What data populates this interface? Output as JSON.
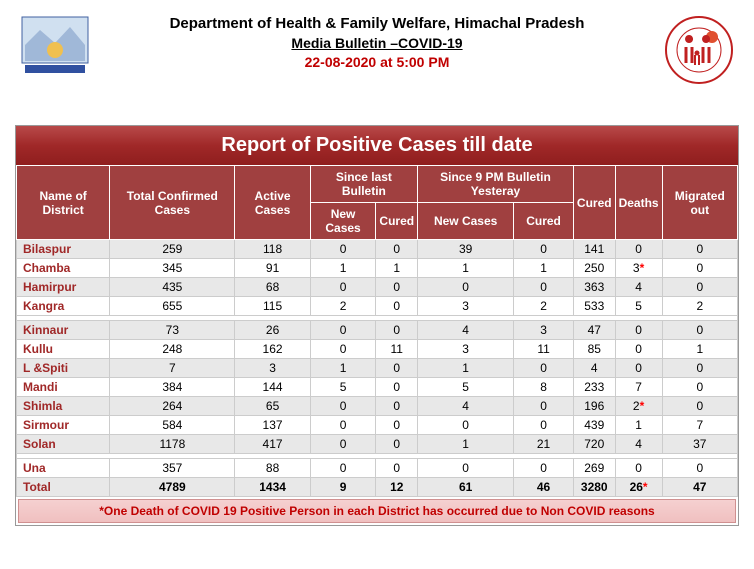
{
  "header": {
    "dept": "Department of Health & Family Welfare, Himachal Pradesh",
    "media": "Media Bulletin –COVID-19",
    "date": "22-08-2020 at 5:00 PM"
  },
  "reportTitle": "Report of Positive Cases till date",
  "columns": {
    "name": "Name of District",
    "total": "Total Confirmed Cases",
    "active": "Active Cases",
    "sinceLast": "Since last Bulletin",
    "since9pm": "Since 9 PM Bulletin Yesteray",
    "newCases": "New Cases",
    "cured": "Cured",
    "curedCol": "Cured",
    "deaths": "Deaths",
    "migrated": "Migrated out"
  },
  "rows": [
    {
      "n": "Bilaspur",
      "t": "259",
      "a": "118",
      "ln": "0",
      "lc": "0",
      "yn": "39",
      "yc": "0",
      "c": "141",
      "d": "0",
      "m": "0",
      "star": false,
      "cls": "odd"
    },
    {
      "n": "Chamba",
      "t": "345",
      "a": "91",
      "ln": "1",
      "lc": "1",
      "yn": "1",
      "yc": "1",
      "c": "250",
      "d": "3",
      "m": "0",
      "star": true,
      "cls": "even"
    },
    {
      "n": "Hamirpur",
      "t": "435",
      "a": "68",
      "ln": "0",
      "lc": "0",
      "yn": "0",
      "yc": "0",
      "c": "363",
      "d": "4",
      "m": "0",
      "star": false,
      "cls": "odd"
    },
    {
      "n": "Kangra",
      "t": "655",
      "a": "115",
      "ln": "2",
      "lc": "0",
      "yn": "3",
      "yc": "2",
      "c": "533",
      "d": "5",
      "m": "2",
      "star": false,
      "cls": "even"
    }
  ],
  "rows2": [
    {
      "n": "Kinnaur",
      "t": "73",
      "a": "26",
      "ln": "0",
      "lc": "0",
      "yn": "4",
      "yc": "3",
      "c": "47",
      "d": "0",
      "m": "0",
      "star": false,
      "cls": "odd"
    },
    {
      "n": "Kullu",
      "t": "248",
      "a": "162",
      "ln": "0",
      "lc": "11",
      "yn": "3",
      "yc": "11",
      "c": "85",
      "d": "0",
      "m": "1",
      "star": false,
      "cls": "even"
    },
    {
      "n": "L &Spiti",
      "t": "7",
      "a": "3",
      "ln": "1",
      "lc": "0",
      "yn": "1",
      "yc": "0",
      "c": "4",
      "d": "0",
      "m": "0",
      "star": false,
      "cls": "odd"
    },
    {
      "n": "Mandi",
      "t": "384",
      "a": "144",
      "ln": "5",
      "lc": "0",
      "yn": "5",
      "yc": "8",
      "c": "233",
      "d": "7",
      "m": "0",
      "star": false,
      "cls": "even"
    },
    {
      "n": "Shimla",
      "t": "264",
      "a": "65",
      "ln": "0",
      "lc": "0",
      "yn": "4",
      "yc": "0",
      "c": "196",
      "d": "2",
      "m": "0",
      "star": true,
      "cls": "odd"
    },
    {
      "n": "Sirmour",
      "t": "584",
      "a": "137",
      "ln": "0",
      "lc": "0",
      "yn": "0",
      "yc": "0",
      "c": "439",
      "d": "1",
      "m": "7",
      "star": false,
      "cls": "even"
    },
    {
      "n": "Solan",
      "t": "1178",
      "a": "417",
      "ln": "0",
      "lc": "0",
      "yn": "1",
      "yc": "21",
      "c": "720",
      "d": "4",
      "m": "37",
      "star": false,
      "cls": "odd"
    }
  ],
  "rows3": [
    {
      "n": "Una",
      "t": "357",
      "a": "88",
      "ln": "0",
      "lc": "0",
      "yn": "0",
      "yc": "0",
      "c": "269",
      "d": "0",
      "m": "0",
      "star": false,
      "cls": "even"
    }
  ],
  "total": {
    "n": "Total",
    "t": "4789",
    "a": "1434",
    "ln": "9",
    "lc": "12",
    "yn": "61",
    "yc": "46",
    "c": "3280",
    "d": "26",
    "m": "47",
    "star": true
  },
  "footnote": "*One Death of COVID 19 Positive Person in each District has occurred due to Non COVID reasons"
}
